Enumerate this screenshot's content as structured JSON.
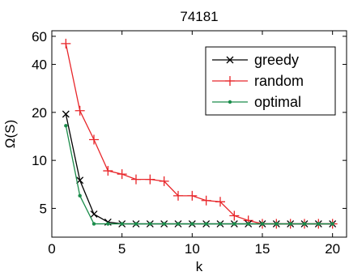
{
  "chart_data": {
    "type": "line",
    "title": "74181",
    "xlabel": "k",
    "ylabel": "Ω(S)",
    "xlim": [
      0,
      21
    ],
    "ylim": [
      3.3,
      65
    ],
    "yscale": "log",
    "xticks": [
      0,
      5,
      10,
      15,
      20
    ],
    "xtick_labels": [
      "0",
      "5",
      "10",
      "15",
      "20"
    ],
    "yticks": [
      5,
      10,
      20,
      40,
      60
    ],
    "ytick_labels": [
      "5",
      "10",
      "20",
      "40",
      "60"
    ],
    "grid": false,
    "legend_position": "top-right",
    "series": [
      {
        "name": "greedy",
        "color": "#000000",
        "marker": "x",
        "x": [
          1,
          2,
          3,
          4,
          5,
          6,
          7,
          8,
          9,
          10,
          11,
          12,
          13,
          14,
          15,
          16,
          17,
          18,
          19,
          20
        ],
        "y": [
          19.5,
          7.5,
          4.6,
          4.1,
          4.0,
          4.0,
          4.0,
          4.0,
          4.0,
          4.0,
          4.0,
          4.0,
          4.0,
          4.0,
          4.0,
          4.0,
          4.0,
          4.0,
          4.0,
          4.0
        ]
      },
      {
        "name": "random",
        "color": "#e8262a",
        "marker": "+",
        "x": [
          1,
          2,
          3,
          4,
          5,
          6,
          7,
          8,
          9,
          10,
          11,
          12,
          13,
          14,
          15,
          16,
          17,
          18,
          19,
          20
        ],
        "y": [
          54,
          20.5,
          13.5,
          8.6,
          8.2,
          7.6,
          7.6,
          7.4,
          6.0,
          6.0,
          5.6,
          5.5,
          4.5,
          4.2,
          4.0,
          4.0,
          4.0,
          4.0,
          4.0,
          4.0
        ]
      },
      {
        "name": "optimal",
        "color": "#1a8c4a",
        "marker": ".",
        "x": [
          1,
          2,
          3,
          4,
          5,
          6,
          7,
          8,
          9,
          10,
          11,
          12,
          13,
          14,
          15,
          16,
          17,
          18,
          19,
          20
        ],
        "y": [
          16.5,
          6.0,
          4.0,
          4.0,
          4.0,
          4.0,
          4.0,
          4.0,
          4.0,
          4.0,
          4.0,
          4.0,
          4.0,
          4.0,
          4.0,
          4.0,
          4.0,
          4.0,
          4.0,
          4.0
        ]
      }
    ]
  }
}
